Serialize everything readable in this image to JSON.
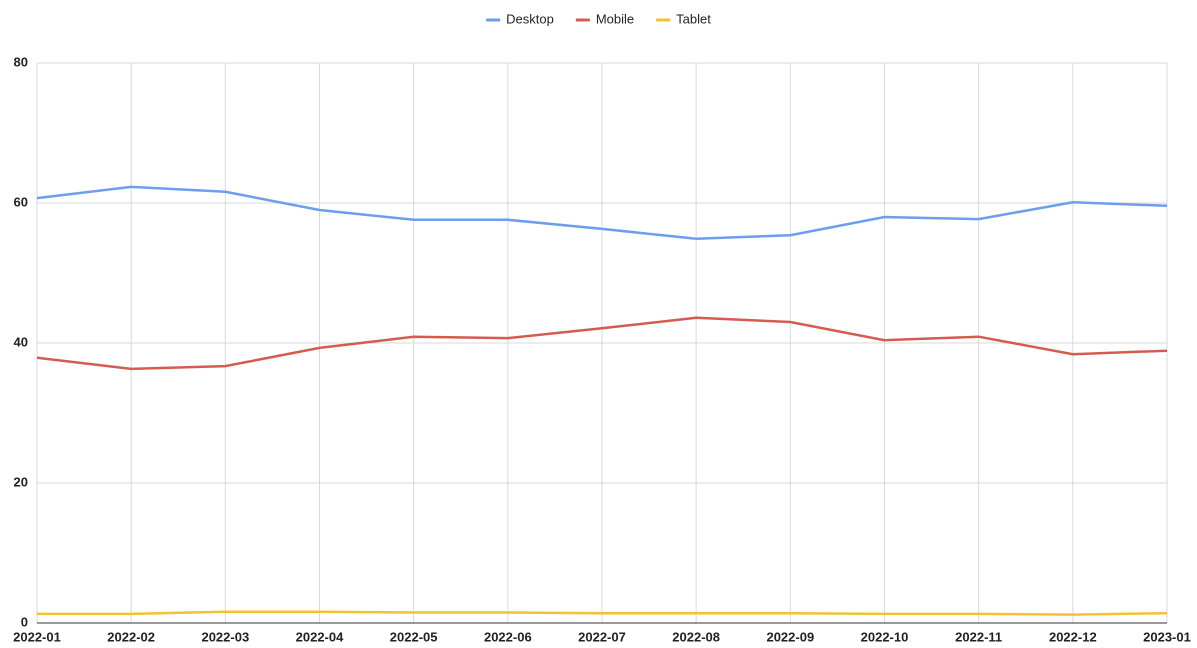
{
  "chart_data": {
    "type": "line",
    "categories": [
      "2022-01",
      "2022-02",
      "2022-03",
      "2022-04",
      "2022-05",
      "2022-06",
      "2022-07",
      "2022-08",
      "2022-09",
      "2022-10",
      "2022-11",
      "2022-12",
      "2023-01"
    ],
    "series": [
      {
        "name": "Desktop",
        "color": "#6d9eeb",
        "values": [
          60.7,
          62.3,
          61.6,
          59.0,
          57.6,
          57.6,
          56.3,
          54.9,
          55.4,
          58.0,
          57.7,
          60.1,
          59.6
        ]
      },
      {
        "name": "Mobile",
        "color": "#d65b4f",
        "values": [
          37.9,
          36.3,
          36.7,
          39.3,
          40.9,
          40.7,
          42.1,
          43.6,
          43.0,
          40.4,
          40.9,
          38.4,
          38.9
        ]
      },
      {
        "name": "Tablet",
        "color": "#f1c232",
        "values": [
          1.3,
          1.3,
          1.6,
          1.6,
          1.5,
          1.5,
          1.4,
          1.4,
          1.4,
          1.3,
          1.3,
          1.2,
          1.4
        ]
      }
    ],
    "ylim": [
      0,
      80
    ],
    "yticks": [
      0,
      20,
      40,
      60,
      80
    ],
    "grid": true,
    "legend": "top"
  }
}
